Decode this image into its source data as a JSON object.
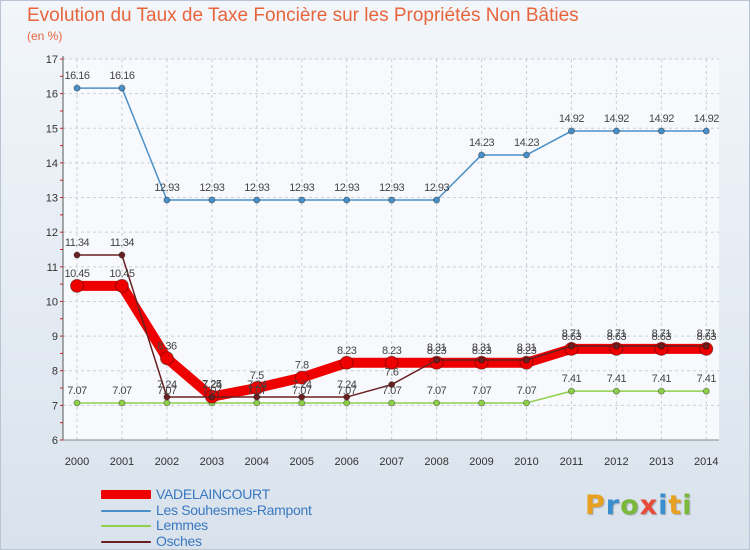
{
  "header": {
    "title": "Evolution du Taux de Taxe Foncière sur les Propriétés Non Bâties",
    "subtitle": "(en %)"
  },
  "brand": {
    "name": "Proxiti",
    "letters": [
      {
        "ch": "P",
        "color": "#e8a020"
      },
      {
        "ch": "r",
        "color": "#3a8fd0"
      },
      {
        "ch": "o",
        "color": "#7ab83a"
      },
      {
        "ch": "x",
        "color": "#e84a3a"
      },
      {
        "ch": "i",
        "color": "#3a8fd0"
      },
      {
        "ch": "t",
        "color": "#e8a020"
      },
      {
        "ch": "i",
        "color": "#7ab83a"
      }
    ]
  },
  "chart_data": {
    "type": "line",
    "title": "Evolution du Taux de Taxe Foncière sur les Propriétés Non Bâties",
    "ylabel": "(en %)",
    "xlabel": "",
    "ylim": [
      6,
      17
    ],
    "yticks": [
      6,
      7,
      8,
      9,
      10,
      11,
      12,
      13,
      14,
      15,
      16,
      17
    ],
    "grid": true,
    "legend_position": "bottom-left",
    "categories": [
      "2000",
      "2001",
      "2002",
      "2003",
      "2004",
      "2005",
      "2006",
      "2007",
      "2008",
      "2009",
      "2010",
      "2011",
      "2012",
      "2013",
      "2014"
    ],
    "series": [
      {
        "name": "VADELAINCOURT",
        "color": "#ee0000",
        "values": [
          10.45,
          10.45,
          8.36,
          7.25,
          7.5,
          7.8,
          8.23,
          8.23,
          8.23,
          8.23,
          8.23,
          8.63,
          8.63,
          8.63,
          8.63
        ],
        "labels": [
          "10.45",
          "10.45",
          "8.36",
          "7.25",
          "7.5",
          "7.8",
          "8.23",
          "8.23",
          "8.23",
          "8.23",
          "8.23",
          "8.63",
          "8.63",
          "8.63",
          "8.63"
        ]
      },
      {
        "name": "Les Souhesmes-Rampont",
        "color": "#4a90c8",
        "values": [
          16.16,
          16.16,
          12.93,
          12.93,
          12.93,
          12.93,
          12.93,
          12.93,
          12.93,
          14.23,
          14.23,
          14.92,
          14.92,
          14.92,
          14.92
        ],
        "labels": [
          "16.16",
          "16.16",
          "12.93",
          "12.93",
          "12.93",
          "12.93",
          "12.93",
          "12.93",
          "12.93",
          "14.23",
          "14.23",
          "14.92",
          "14.92",
          "14.92",
          "14.92"
        ]
      },
      {
        "name": "Lemmes",
        "color": "#8fd04a",
        "values": [
          7.07,
          7.07,
          7.07,
          7.07,
          7.07,
          7.07,
          7.07,
          7.07,
          7.07,
          7.07,
          7.07,
          7.41,
          7.41,
          7.41,
          7.41
        ],
        "labels": [
          "7.07",
          "7.07",
          "7.07",
          "7.07",
          "7.07",
          "7.07",
          "7.07",
          "7.07",
          "7.07",
          "7.07",
          "7.07",
          "7.41",
          "7.41",
          "7.41",
          "7.41"
        ]
      },
      {
        "name": "Osches",
        "color": "#6a2020",
        "values": [
          11.34,
          11.34,
          7.24,
          7.24,
          7.24,
          7.24,
          7.24,
          7.6,
          8.31,
          8.31,
          8.31,
          8.71,
          8.71,
          8.71,
          8.71
        ],
        "labels": [
          "11.34",
          "11.34",
          "7.24",
          "7.24",
          "7.24",
          "7.24",
          "7.24",
          "7.6",
          "8.31",
          "8.31",
          "8.31",
          "8.71",
          "8.71",
          "8.71",
          "8.71"
        ]
      }
    ]
  }
}
